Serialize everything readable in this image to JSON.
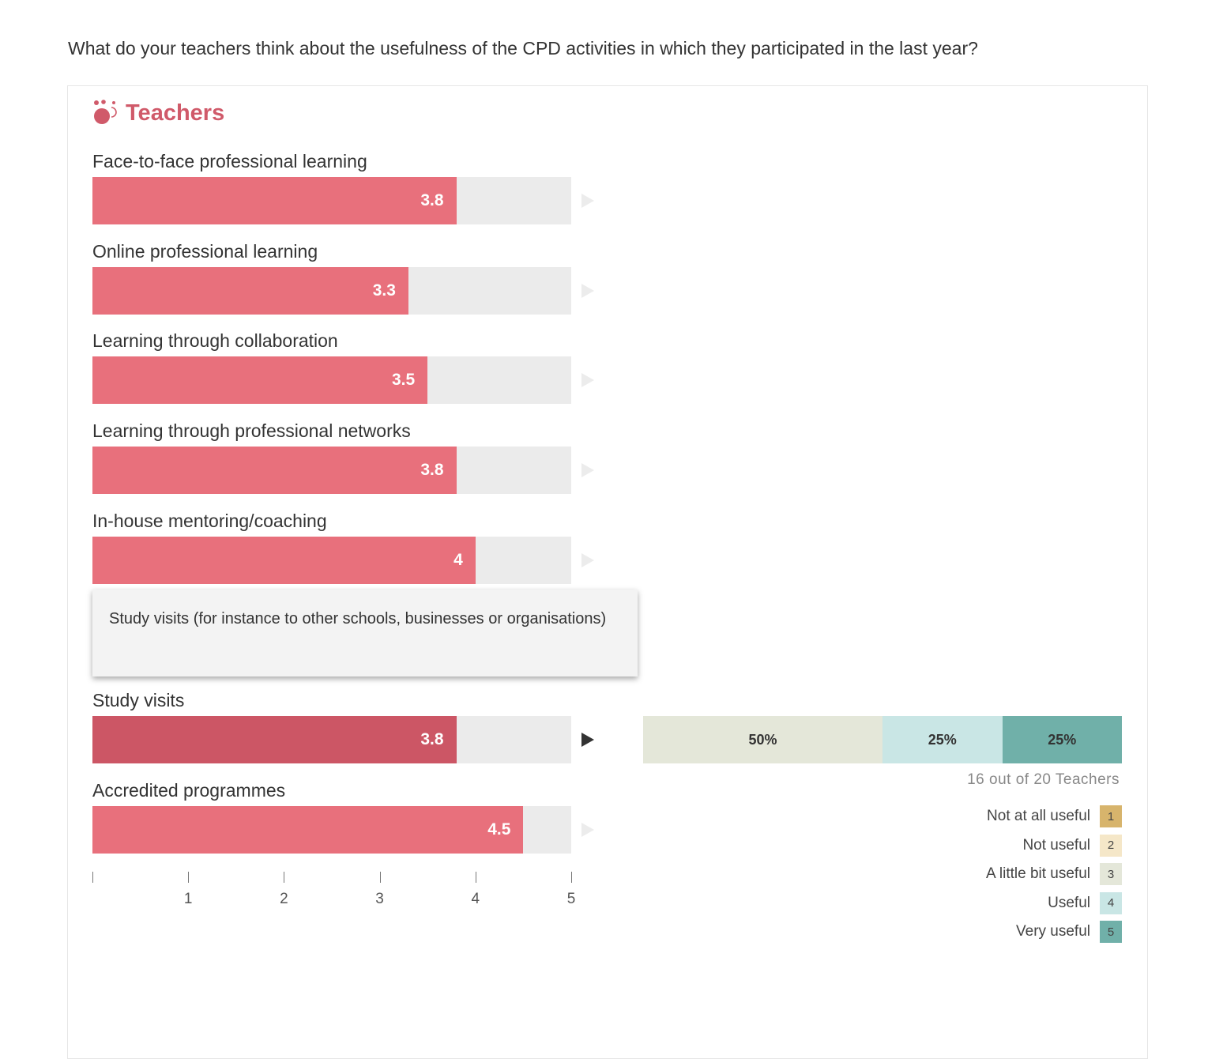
{
  "question": "What do your teachers think about the usefulness of the CPD activities in which they participated in the last year?",
  "panel": {
    "title": "Teachers",
    "icon": "teachers-group-icon",
    "accent_color": "#d05a6a"
  },
  "chart_data": {
    "type": "bar",
    "orientation": "horizontal",
    "categories": [
      "Face-to-face professional learning",
      "Online professional learning",
      "Learning through collaboration",
      "Learning through professional networks",
      "In-house mentoring/coaching",
      "Study visits",
      "Accredited programmes"
    ],
    "values": [
      3.8,
      3.3,
      3.5,
      3.8,
      4,
      3.8,
      4.5
    ],
    "value_labels": [
      "3.8",
      "3.3",
      "3.5",
      "3.8",
      "4",
      "3.8",
      "4.5"
    ],
    "xlim": [
      0,
      5
    ],
    "x_ticks": [
      "",
      "1",
      "2",
      "3",
      "4",
      "5"
    ],
    "bar_color": "#e8707c",
    "active_bar_color": "#cc5665",
    "active_index": 5,
    "grid": false
  },
  "tooltip": {
    "text": "Study visits (for instance to other schools, businesses or organisations)"
  },
  "breakdown": {
    "segments": [
      {
        "label": "50%",
        "value": 50,
        "color": "#e4e7d9"
      },
      {
        "label": "25%",
        "value": 25,
        "color": "#c9e6e5"
      },
      {
        "label": "25%",
        "value": 25,
        "color": "#70b0a9"
      }
    ],
    "count_text": "16 out of 20 Teachers"
  },
  "legend": [
    {
      "label": "Not at all useful",
      "code": "1",
      "color": "#d7b46c"
    },
    {
      "label": "Not useful",
      "code": "2",
      "color": "#f5e7c8"
    },
    {
      "label": "A little bit useful",
      "code": "3",
      "color": "#e4e7d9"
    },
    {
      "label": "Useful",
      "code": "4",
      "color": "#c9e6e5"
    },
    {
      "label": "Very useful",
      "code": "5",
      "color": "#70b0a9"
    }
  ]
}
